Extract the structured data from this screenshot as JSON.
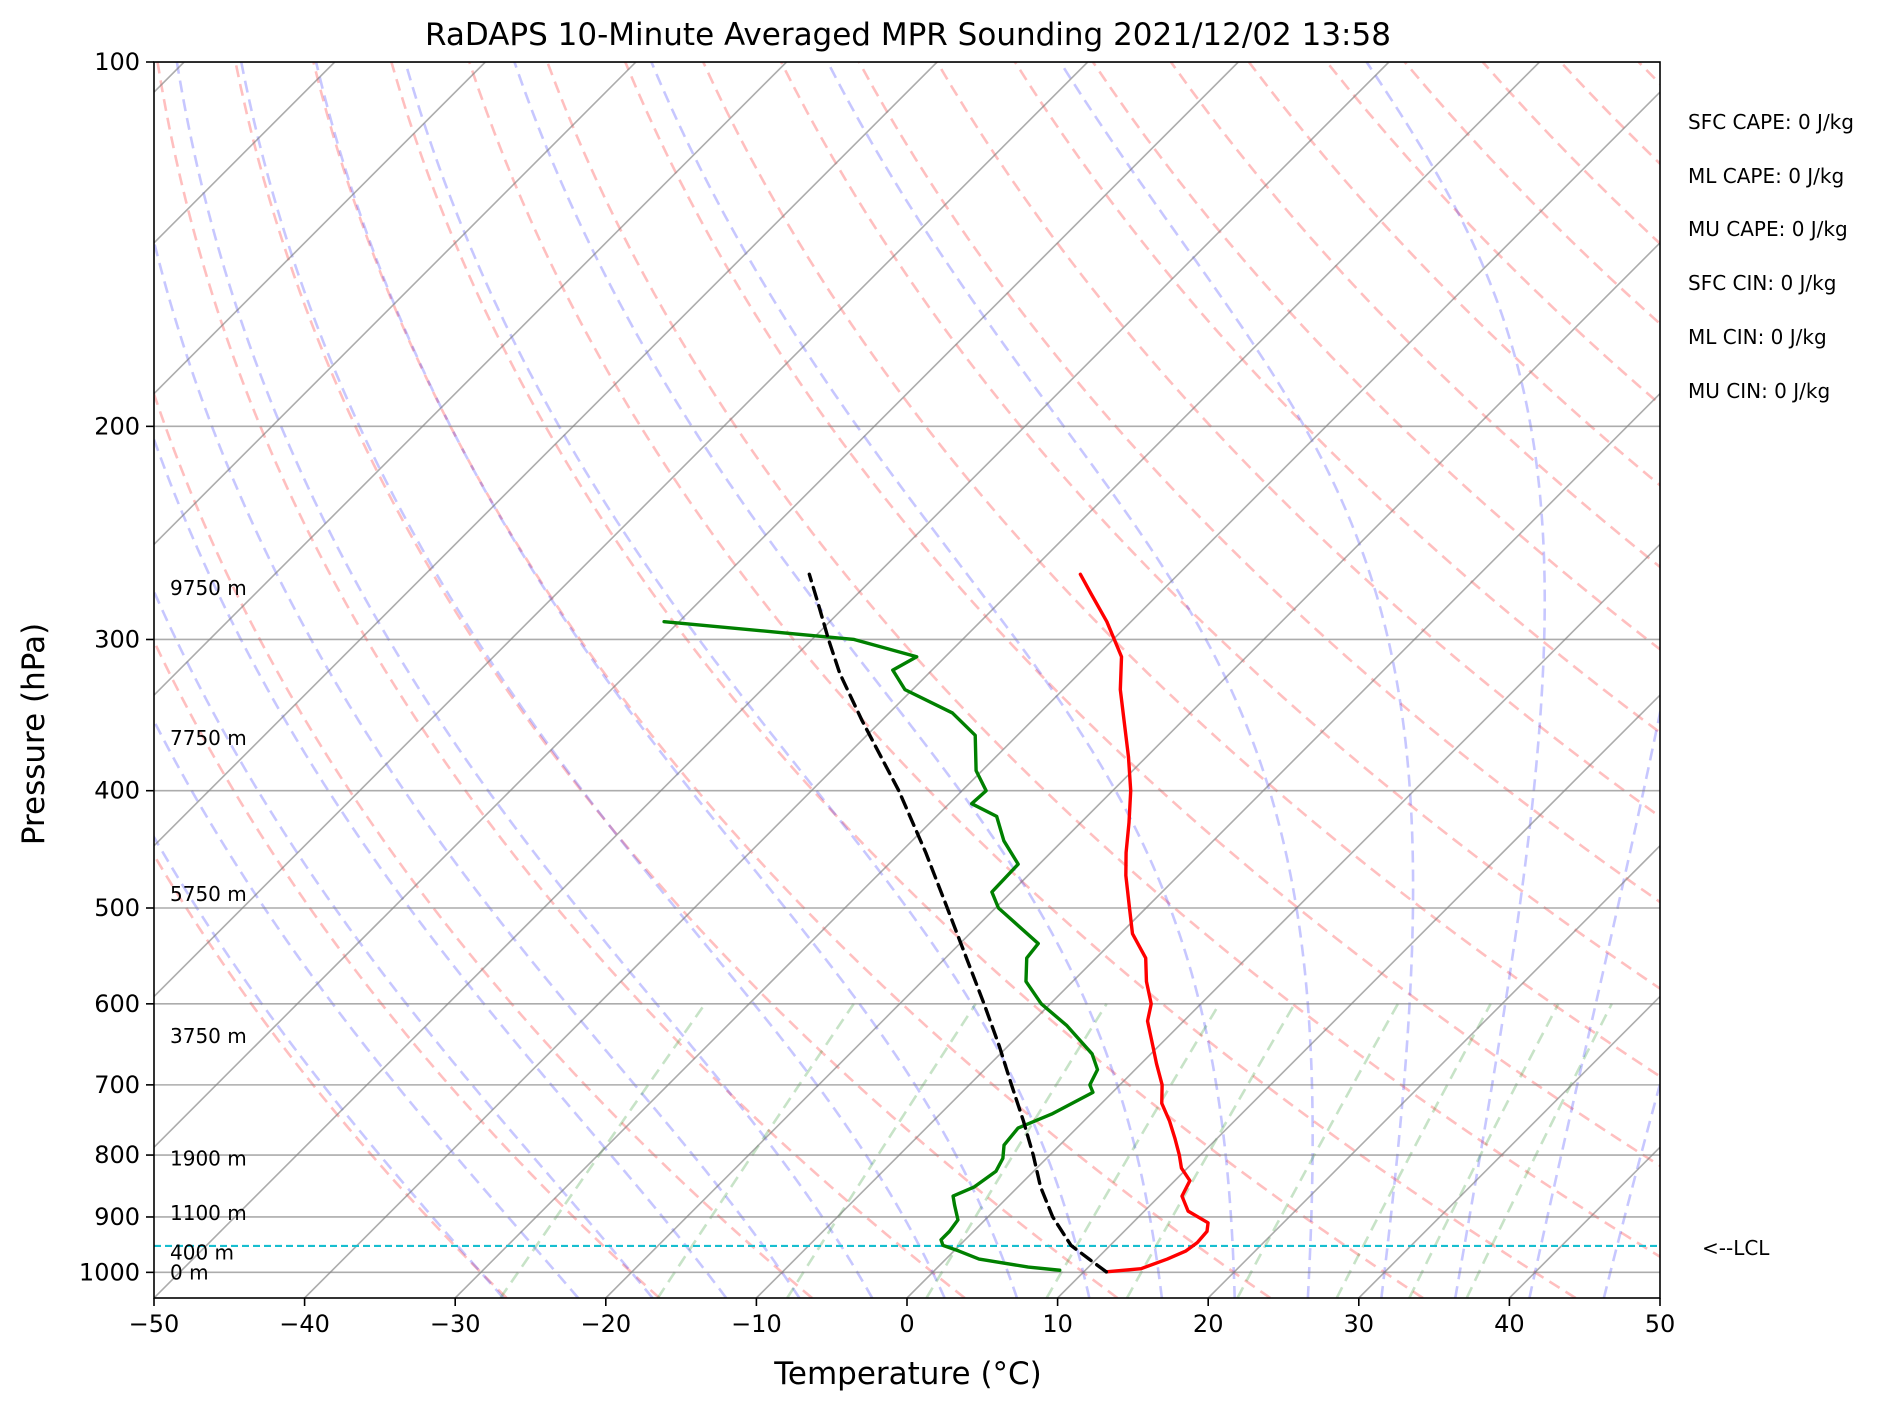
{
  "chart_data": {
    "type": "line",
    "title": "RaDAPS 10-Minute Averaged MPR Sounding 2021/12/02 13:58",
    "xlabel": "Temperature (°C)",
    "ylabel": "Pressure (hPa)",
    "xlim": [
      -50,
      50
    ],
    "ylim": [
      1050,
      100
    ],
    "y_scale": "log",
    "skew_t": true,
    "x_ticks": [
      "−50",
      "−40",
      "−30",
      "−20",
      "−10",
      "0",
      "10",
      "20",
      "30",
      "40",
      "50"
    ],
    "x_tick_values": [
      -50,
      -40,
      -30,
      -20,
      -10,
      0,
      10,
      20,
      30,
      40,
      50
    ],
    "y_ticks": [
      "100",
      "200",
      "300",
      "400",
      "500",
      "600",
      "700",
      "800",
      "900",
      "1000"
    ],
    "y_tick_values": [
      100,
      200,
      300,
      400,
      500,
      600,
      700,
      800,
      900,
      1000
    ],
    "grid": true,
    "series": [
      {
        "id": "temperature",
        "color": "#ff0000",
        "style": "solid",
        "points": [
          [
            999,
            11.5
          ],
          [
            993,
            13.6
          ],
          [
            975,
            14.7
          ],
          [
            960,
            15.4
          ],
          [
            945,
            15.6
          ],
          [
            925,
            15.5
          ],
          [
            910,
            15.0
          ],
          [
            890,
            12.9
          ],
          [
            865,
            11.5
          ],
          [
            840,
            11.0
          ],
          [
            820,
            9.6
          ],
          [
            800,
            8.6
          ],
          [
            775,
            7.2
          ],
          [
            750,
            5.7
          ],
          [
            725,
            4.0
          ],
          [
            700,
            2.8
          ],
          [
            672,
            1.0
          ],
          [
            650,
            -0.4
          ],
          [
            620,
            -2.4
          ],
          [
            600,
            -3.3
          ],
          [
            575,
            -5.1
          ],
          [
            550,
            -6.7
          ],
          [
            525,
            -9.2
          ],
          [
            500,
            -11.1
          ],
          [
            470,
            -13.5
          ],
          [
            450,
            -15.0
          ],
          [
            425,
            -16.8
          ],
          [
            400,
            -18.8
          ],
          [
            375,
            -21.2
          ],
          [
            350,
            -23.9
          ],
          [
            330,
            -26.2
          ],
          [
            310,
            -28.3
          ],
          [
            290,
            -31.6
          ],
          [
            275,
            -34.5
          ],
          [
            265,
            -36.5
          ]
        ]
      },
      {
        "id": "dewpoint",
        "color": "#008000",
        "style": "solid",
        "points": [
          [
            996,
            8.3
          ],
          [
            990,
            6.0
          ],
          [
            975,
            2.2
          ],
          [
            960,
            0.3
          ],
          [
            950,
            -1.1
          ],
          [
            940,
            -1.6
          ],
          [
            925,
            -1.6
          ],
          [
            905,
            -1.8
          ],
          [
            880,
            -3.0
          ],
          [
            865,
            -3.7
          ],
          [
            850,
            -2.9
          ],
          [
            825,
            -2.5
          ],
          [
            805,
            -2.9
          ],
          [
            785,
            -3.7
          ],
          [
            760,
            -3.9
          ],
          [
            740,
            -2.6
          ],
          [
            710,
            -1.3
          ],
          [
            700,
            -2.0
          ],
          [
            680,
            -2.5
          ],
          [
            660,
            -3.9
          ],
          [
            625,
            -7.5
          ],
          [
            600,
            -10.6
          ],
          [
            575,
            -13.1
          ],
          [
            550,
            -14.6
          ],
          [
            535,
            -14.8
          ],
          [
            500,
            -19.8
          ],
          [
            485,
            -21.3
          ],
          [
            460,
            -21.4
          ],
          [
            440,
            -23.9
          ],
          [
            420,
            -26.0
          ],
          [
            410,
            -28.5
          ],
          [
            400,
            -28.4
          ],
          [
            385,
            -30.4
          ],
          [
            360,
            -32.8
          ],
          [
            345,
            -35.8
          ],
          [
            330,
            -40.5
          ],
          [
            318,
            -42.6
          ],
          [
            310,
            -41.9
          ],
          [
            300,
            -47.2
          ],
          [
            290,
            -61.0
          ]
        ]
      },
      {
        "id": "parcel",
        "color": "#000000",
        "style": "dashed",
        "points": [
          [
            999,
            11.5
          ],
          [
            975,
            9.5
          ],
          [
            950,
            7.4
          ],
          [
            900,
            4.3
          ],
          [
            850,
            1.5
          ],
          [
            800,
            -1.1
          ],
          [
            750,
            -4.0
          ],
          [
            700,
            -7.2
          ],
          [
            650,
            -10.6
          ],
          [
            600,
            -14.4
          ],
          [
            550,
            -18.6
          ],
          [
            500,
            -23.2
          ],
          [
            450,
            -28.3
          ],
          [
            400,
            -34.2
          ],
          [
            350,
            -41.3
          ],
          [
            320,
            -45.9
          ],
          [
            300,
            -48.9
          ],
          [
            280,
            -52.0
          ],
          [
            265,
            -54.5
          ]
        ]
      }
    ],
    "isotherm_temps": [
      -150,
      -140,
      -130,
      -120,
      -110,
      -100,
      -90,
      -80,
      -70,
      -60,
      -50,
      -40,
      -30,
      -20,
      -10,
      0,
      10,
      20,
      30,
      40,
      50
    ],
    "dry_adiabat_thetas_c": [
      -30,
      -20,
      -10,
      0,
      10,
      20,
      30,
      40,
      50,
      60,
      70,
      80,
      90,
      100,
      110,
      120,
      130,
      140,
      150,
      160,
      170,
      180,
      190,
      200
    ],
    "moist_adiabat_start_temps_c": [
      -30,
      -25,
      -20,
      -15,
      -10,
      -5,
      0,
      5,
      10,
      15,
      20,
      25,
      30,
      35,
      40,
      45
    ],
    "mixing_ratios_gkg": [
      0.4,
      1,
      2,
      4,
      7,
      10,
      16,
      24,
      32,
      40
    ],
    "lcl_pressure": 951,
    "lcl_label": "<--LCL",
    "height_labels": [
      {
        "text": "9750 m",
        "pressure": 272
      },
      {
        "text": "7750 m",
        "pressure": 362
      },
      {
        "text": "5750 m",
        "pressure": 487
      },
      {
        "text": "3750 m",
        "pressure": 638
      },
      {
        "text": "1900 m",
        "pressure": 805
      },
      {
        "text": "1100 m",
        "pressure": 893
      },
      {
        "text": "400 m",
        "pressure": 963
      },
      {
        "text": "0 m",
        "pressure": 1000
      }
    ],
    "legend_placement": "none",
    "colors": {
      "temperature": "#ff0000",
      "dewpoint": "#008000",
      "parcel": "#000000",
      "lcl": "#17becf",
      "isotherm": "#808080",
      "dry_adiabat": "#ff0000",
      "moist_adiabat": "#0000ff",
      "mixing_ratio": "#008000"
    }
  },
  "stats": [
    "SFC CAPE: 0 J/kg",
    "ML CAPE: 0 J/kg",
    "MU CAPE: 0 J/kg",
    "SFC CIN: 0 J/kg",
    "ML CIN: 0 J/kg",
    "MU CIN: 0 J/kg"
  ]
}
